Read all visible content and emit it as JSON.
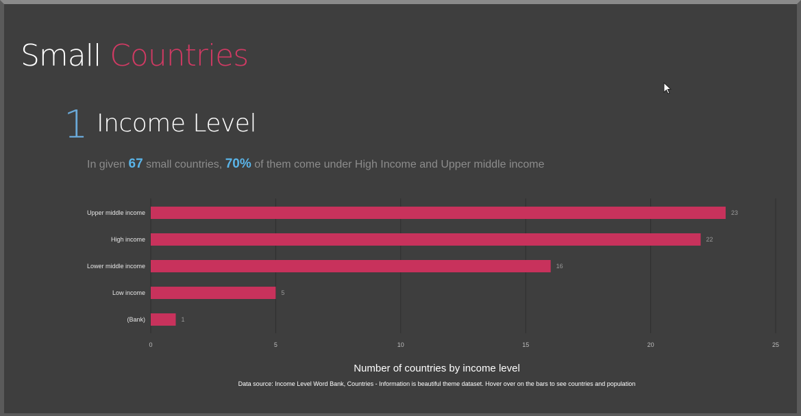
{
  "header": {
    "title_part1": "Small",
    "title_part2": "Countries"
  },
  "section": {
    "number": "1",
    "title": "Income Level"
  },
  "summary": {
    "prefix": "In given",
    "count": "67",
    "middle": "small countries,",
    "percent": "70%",
    "suffix": "of them come under High Income and Upper middle income"
  },
  "colors": {
    "accent": "#d03a63",
    "bar": "#c8325c",
    "highlight": "#5ab4e8",
    "background": "#3e3e3e"
  },
  "chart_data": {
    "type": "bar",
    "orientation": "horizontal",
    "categories": [
      "Upper middle income",
      "High income",
      "Lower middle income",
      "Low income",
      "(Bank)"
    ],
    "values": [
      23,
      22,
      16,
      5,
      1
    ],
    "xticks": [
      0,
      5,
      10,
      15,
      20,
      25
    ],
    "xlim": [
      0,
      25
    ],
    "grid": true,
    "title": "Number of countries by income level",
    "note": "Data source: Income Level Word Bank, Countries - Information is beautiful theme dataset. Hover over on the bars to see countries and population"
  }
}
